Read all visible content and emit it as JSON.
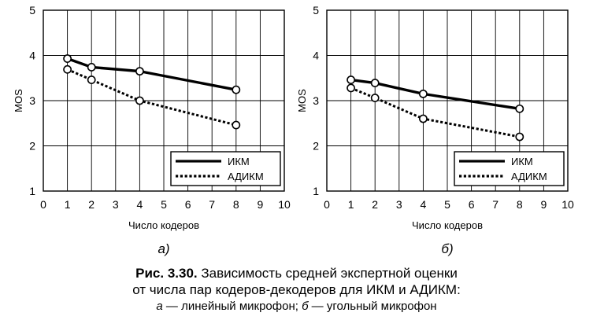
{
  "chart_data": [
    {
      "type": "line",
      "panel_label": "а)",
      "x": [
        1,
        2,
        4,
        8
      ],
      "xlabel": "Число кодеров",
      "ylabel": "MOS",
      "xlim": [
        0,
        10
      ],
      "ylim": [
        1,
        5
      ],
      "xticks": [
        0,
        1,
        2,
        3,
        4,
        5,
        6,
        7,
        8,
        9,
        10
      ],
      "yticks": [
        1,
        2,
        3,
        4,
        5
      ],
      "grid": true,
      "legend": "bottom-right",
      "series": [
        {
          "name": "ИКМ",
          "style": "solid",
          "values": [
            3.93,
            3.74,
            3.65,
            3.24
          ]
        },
        {
          "name": "АДИКМ",
          "style": "dotted",
          "values": [
            3.69,
            3.46,
            3.0,
            2.46
          ]
        }
      ]
    },
    {
      "type": "line",
      "panel_label": "б)",
      "x": [
        1,
        2,
        4,
        8
      ],
      "xlabel": "Число кодеров",
      "ylabel": "MOS",
      "xlim": [
        0,
        10
      ],
      "ylim": [
        1,
        5
      ],
      "xticks": [
        0,
        1,
        2,
        3,
        4,
        5,
        6,
        7,
        8,
        9,
        10
      ],
      "yticks": [
        1,
        2,
        3,
        4,
        5
      ],
      "grid": true,
      "legend": "bottom-right",
      "series": [
        {
          "name": "ИКМ",
          "style": "solid",
          "values": [
            3.46,
            3.39,
            3.15,
            2.82
          ]
        },
        {
          "name": "АДИКМ",
          "style": "dotted",
          "values": [
            3.28,
            3.06,
            2.6,
            2.2
          ]
        }
      ]
    }
  ],
  "caption": {
    "fig_number": "Рис. 3.30.",
    "line1": "Зависимость средней экспертной оценки",
    "line2": "от числа пар кодеров-декодеров для ИКМ и АДИКМ:",
    "a_letter": "а",
    "a_text": " — линейный микрофон; ",
    "b_letter": "б",
    "b_text": " — угольный микрофон"
  }
}
